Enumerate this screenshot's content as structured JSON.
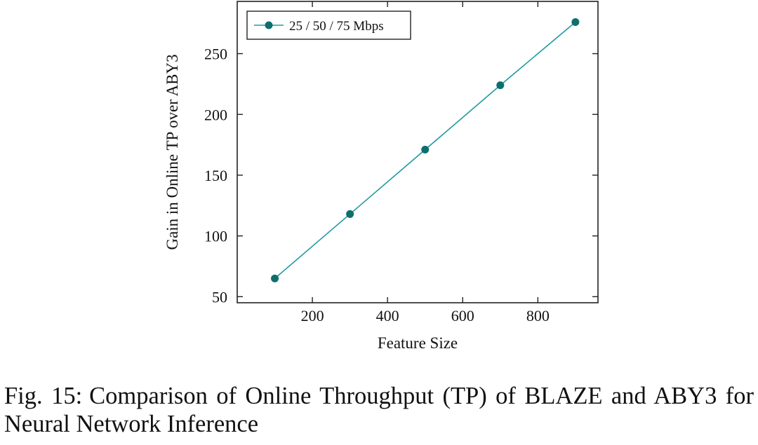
{
  "chart_data": {
    "type": "line",
    "xlabel": "Feature Size",
    "ylabel": "Gain in Online TP over ABY3",
    "xlim": [
      0,
      960
    ],
    "ylim": [
      45,
      293
    ],
    "xticks": [
      200,
      400,
      600,
      800
    ],
    "yticks": [
      50,
      100,
      150,
      200,
      250
    ],
    "legend_position": "top-left",
    "grid": false,
    "series": [
      {
        "name": "25 / 50 / 75 Mbps",
        "color": "#1f9aa0",
        "marker_color": "#0e6e6e",
        "x": [
          100,
          300,
          500,
          700,
          900
        ],
        "y": [
          65,
          118,
          171,
          224,
          276
        ]
      }
    ]
  },
  "caption": {
    "label": "Fig. 15:",
    "text": "Comparison of Online Throughput (TP) of BLAZE and ABY3 for Neural Network Inference"
  }
}
